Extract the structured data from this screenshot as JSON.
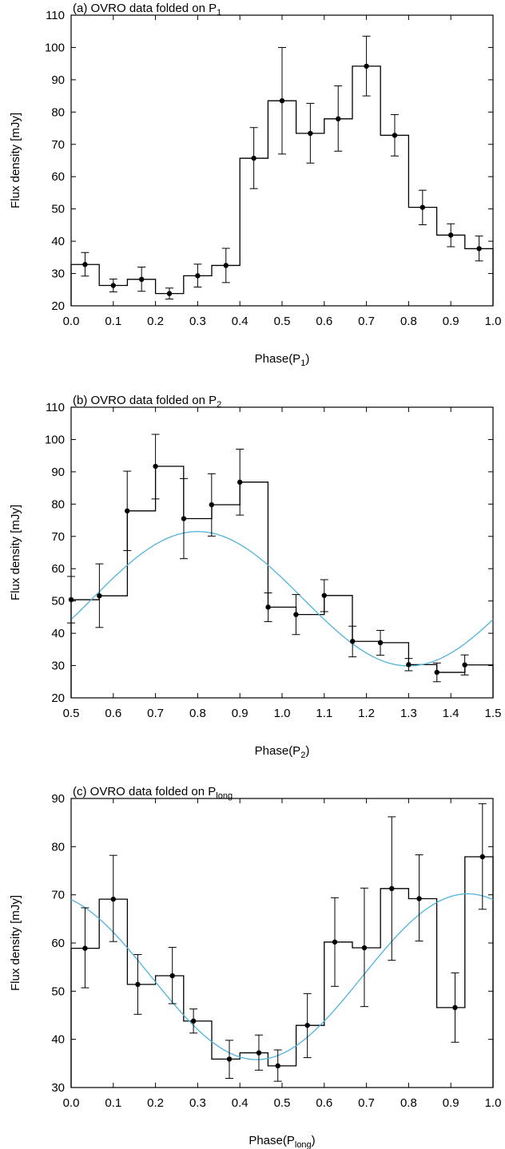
{
  "chart_data": [
    {
      "type": "scatter",
      "title": "(a) OVRO data folded on P",
      "title_sub": "1",
      "xlabel": "Phase(P",
      "xlabel_sub": "1",
      "xlabel_end": ")",
      "ylabel": "Flux density [mJy]",
      "xlim": [
        0.0,
        1.0
      ],
      "ylim": [
        20,
        110
      ],
      "xticks": [
        0.0,
        0.1,
        0.2,
        0.3,
        0.4,
        0.5,
        0.6,
        0.7,
        0.8,
        0.9,
        1.0
      ],
      "xtick_labels": [
        "0.0",
        "0.1",
        "0.2",
        "0.3",
        "0.4",
        "0.5",
        "0.6",
        "0.7",
        "0.8",
        "0.9",
        "1.0"
      ],
      "yticks": [
        20,
        30,
        40,
        50,
        60,
        70,
        80,
        90,
        100,
        110
      ],
      "ytick_labels": [
        "20",
        "30",
        "40",
        "50",
        "60",
        "70",
        "80",
        "90",
        "100",
        "110"
      ],
      "grid": false,
      "series": [
        {
          "x": [
            0.033,
            0.1,
            0.167,
            0.233,
            0.3,
            0.367,
            0.433,
            0.5,
            0.567,
            0.633,
            0.7,
            0.767,
            0.833,
            0.9,
            0.967
          ],
          "y": [
            32.8,
            26.3,
            28.2,
            23.8,
            29.3,
            32.5,
            65.7,
            83.5,
            73.4,
            77.9,
            94.2,
            72.8,
            50.5,
            41.9,
            37.7
          ],
          "err_low": [
            29.2,
            24.3,
            24.5,
            22.1,
            25.8,
            27.2,
            56.3,
            67.0,
            64.2,
            67.9,
            85.0,
            66.4,
            45.1,
            38.3,
            33.9
          ],
          "err_high": [
            36.5,
            28.3,
            32.0,
            25.5,
            32.9,
            37.8,
            75.2,
            100.0,
            82.7,
            88.1,
            103.5,
            79.2,
            55.8,
            45.4,
            41.6
          ]
        }
      ],
      "histogram_baseline": 20
    },
    {
      "type": "scatter",
      "title": "(b) OVRO data folded on P",
      "title_sub": "2",
      "xlabel": "Phase(P",
      "xlabel_sub": "2",
      "xlabel_end": ")",
      "ylabel": "Flux density [mJy]",
      "xlim": [
        0.5,
        1.5
      ],
      "ylim": [
        20,
        110
      ],
      "xticks": [
        0.5,
        0.6,
        0.7,
        0.8,
        0.9,
        1.0,
        1.1,
        1.2,
        1.3,
        1.4,
        1.5
      ],
      "xtick_labels": [
        "0.5",
        "0.6",
        "0.7",
        "0.8",
        "0.9",
        "1.0",
        "1.1",
        "1.2",
        "1.3",
        "1.4",
        "1.5"
      ],
      "yticks": [
        20,
        30,
        40,
        50,
        60,
        70,
        80,
        90,
        100,
        110
      ],
      "ytick_labels": [
        "20",
        "30",
        "40",
        "50",
        "60",
        "70",
        "80",
        "90",
        "100",
        "110"
      ],
      "grid": false,
      "series": [
        {
          "x": [
            0.5,
            0.567,
            0.633,
            0.7,
            0.767,
            0.833,
            0.9,
            0.967,
            1.033,
            1.1,
            1.167,
            1.233,
            1.3,
            1.367,
            1.433
          ],
          "y": [
            50.4,
            51.6,
            77.9,
            91.7,
            75.5,
            79.8,
            86.8,
            48.1,
            45.8,
            51.7,
            37.5,
            37.1,
            30.3,
            27.9,
            30.2
          ],
          "err_low": [
            43.2,
            41.8,
            65.6,
            81.6,
            63.1,
            70.1,
            76.6,
            43.6,
            39.6,
            46.7,
            32.7,
            33.2,
            28.4,
            25.0,
            27.1
          ],
          "err_high": [
            57.6,
            61.5,
            90.2,
            101.6,
            87.9,
            89.4,
            97.0,
            52.5,
            52.0,
            56.6,
            42.2,
            40.9,
            32.2,
            30.8,
            33.3
          ]
        }
      ],
      "fit_curve": {
        "mean": 50.7,
        "amp": 20.8,
        "period": 1.0,
        "peak_x": 0.8
      },
      "curve_color": "#4fb3dc",
      "histogram_baseline": 20
    },
    {
      "type": "scatter",
      "title": "(c) OVRO data folded on P",
      "title_sub": "long",
      "xlabel": "Phase(P",
      "xlabel_sub": "long",
      "xlabel_end": ")",
      "ylabel": "Flux density [mJy]",
      "xlim": [
        0.0,
        1.0
      ],
      "ylim": [
        30,
        90
      ],
      "xticks": [
        0.0,
        0.1,
        0.2,
        0.3,
        0.4,
        0.5,
        0.6,
        0.7,
        0.8,
        0.9,
        1.0
      ],
      "xtick_labels": [
        "0.0",
        "0.1",
        "0.2",
        "0.3",
        "0.4",
        "0.5",
        "0.6",
        "0.7",
        "0.8",
        "0.9",
        "1.0"
      ],
      "yticks": [
        30,
        40,
        50,
        60,
        70,
        80,
        90
      ],
      "ytick_labels": [
        "30",
        "40",
        "50",
        "60",
        "70",
        "80",
        "90"
      ],
      "grid": false,
      "series": [
        {
          "x": [
            0.033,
            0.1,
            0.158,
            0.24,
            0.29,
            0.375,
            0.445,
            0.49,
            0.56,
            0.625,
            0.695,
            0.76,
            0.825,
            0.91,
            0.975
          ],
          "y": [
            58.9,
            69.1,
            51.4,
            53.2,
            43.8,
            35.9,
            37.2,
            34.5,
            42.9,
            60.2,
            59.0,
            71.3,
            69.2,
            46.6,
            77.9
          ],
          "err_low": [
            50.7,
            60.3,
            45.2,
            47.4,
            41.3,
            31.9,
            33.6,
            31.3,
            36.2,
            51.0,
            46.8,
            56.4,
            60.4,
            39.4,
            67.0
          ],
          "err_high": [
            67.3,
            78.2,
            57.6,
            59.1,
            46.3,
            39.8,
            40.9,
            37.8,
            49.5,
            69.4,
            71.4,
            86.2,
            78.3,
            53.8,
            88.9
          ]
        }
      ],
      "fit_curve": {
        "mean": 53.0,
        "amp": 17.2,
        "period": 1.0,
        "peak_x": 0.94
      },
      "curve_color": "#4fb3dc",
      "histogram_baseline": 30
    }
  ]
}
